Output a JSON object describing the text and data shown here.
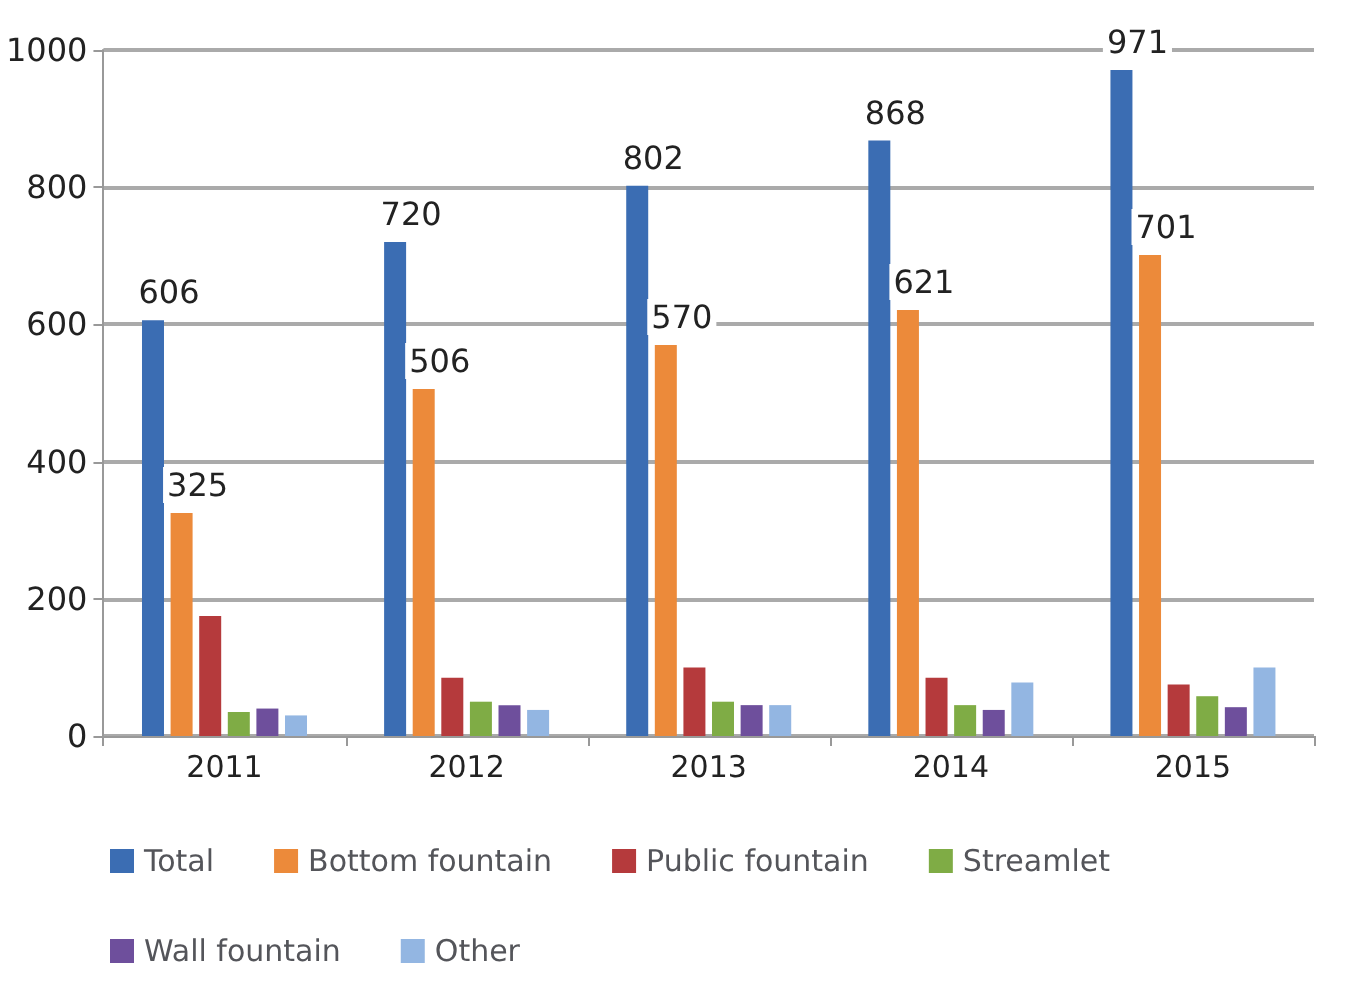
{
  "chart_data": {
    "type": "bar",
    "categories": [
      "2011",
      "2012",
      "2013",
      "2014",
      "2015"
    ],
    "series": [
      {
        "name": "Total",
        "color": "#3b6db3",
        "values": [
          606,
          720,
          802,
          868,
          971
        ],
        "value_labels": [
          "606",
          "720",
          "802",
          "868",
          "971"
        ]
      },
      {
        "name": "Bottom fountain",
        "color": "#ec8a3a",
        "values": [
          325,
          506,
          570,
          621,
          701
        ],
        "value_labels": [
          "325",
          "506",
          "570",
          "621",
          "701"
        ]
      },
      {
        "name": "Public fountain",
        "color": "#b53a3c",
        "values": [
          175,
          85,
          100,
          85,
          75
        ]
      },
      {
        "name": "Streamlet",
        "color": "#7fac45",
        "values": [
          35,
          50,
          50,
          45,
          58
        ]
      },
      {
        "name": "Wall fountain",
        "color": "#6e4f9c",
        "values": [
          40,
          45,
          45,
          38,
          42
        ]
      },
      {
        "name": "Other",
        "color": "#93b6e2",
        "values": [
          30,
          38,
          45,
          78,
          100
        ]
      }
    ],
    "ylim": [
      0,
      1000
    ],
    "yticks": [
      0,
      200,
      400,
      600,
      800,
      1000
    ],
    "grid": "y",
    "legend": "bottom"
  }
}
